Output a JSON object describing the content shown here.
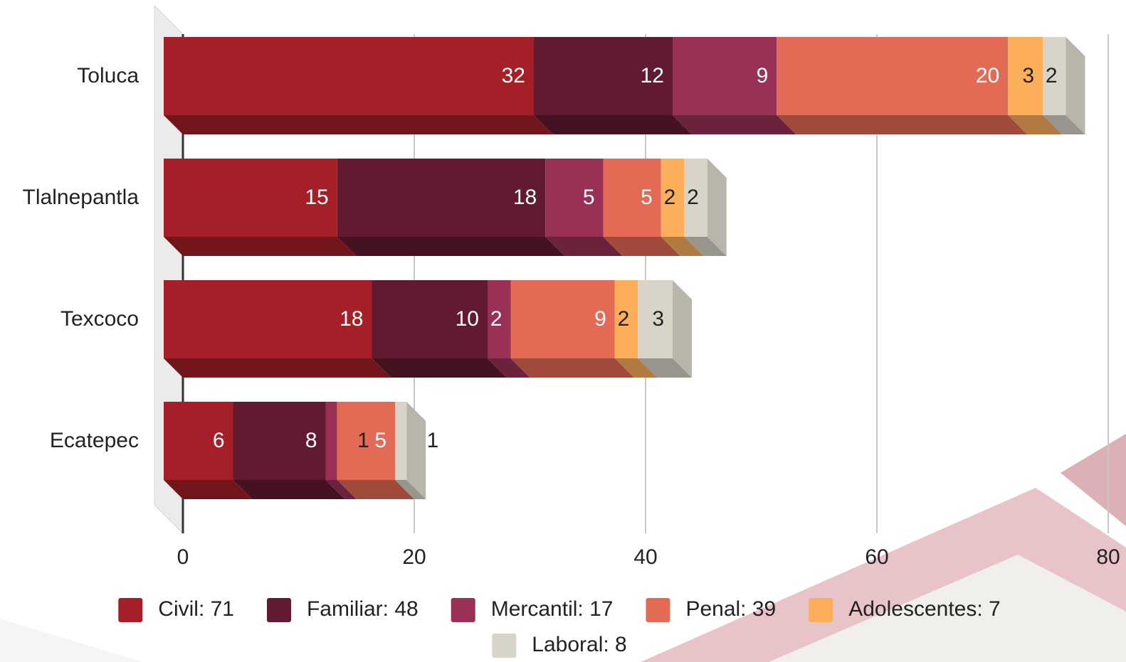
{
  "chart_data": {
    "type": "stacked-bar-3d",
    "categories": [
      "Toluca",
      "Tlalnepantla",
      "Texcoco",
      "Ecatepec"
    ],
    "series": [
      {
        "name": "Civil: 71",
        "color": "#a51f28",
        "values": [
          32,
          15,
          18,
          6
        ]
      },
      {
        "name": "Familiar: 48",
        "color": "#621a30",
        "values": [
          12,
          18,
          10,
          8
        ]
      },
      {
        "name": "Mercantil: 17",
        "color": "#993056",
        "values": [
          9,
          5,
          2,
          1
        ]
      },
      {
        "name": "Penal: 39",
        "color": "#e36a55",
        "values": [
          20,
          5,
          9,
          5
        ]
      },
      {
        "name": "Adolescentes: 7",
        "color": "#fdae5b",
        "values": [
          3,
          2,
          2,
          0
        ]
      },
      {
        "name": "Laboral: 8",
        "color": "#d8d5c8",
        "values": [
          2,
          2,
          3,
          1
        ]
      }
    ],
    "xlim": [
      0,
      80
    ],
    "xticks": [
      0,
      20,
      40,
      60,
      80
    ],
    "grid": true,
    "legend": "bottom"
  }
}
